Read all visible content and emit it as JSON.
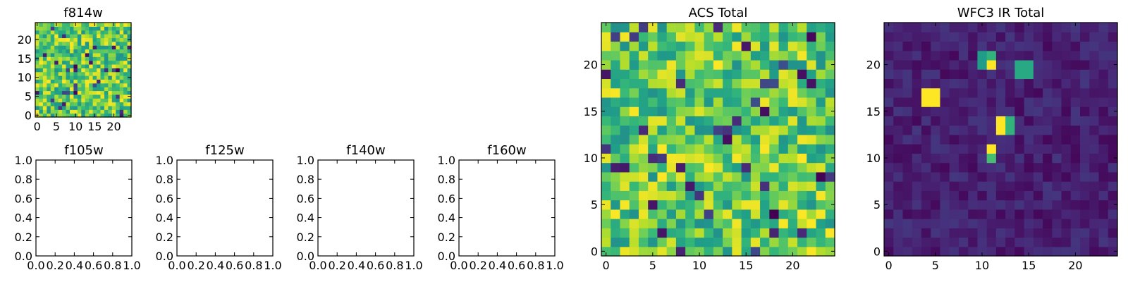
{
  "chart_data": [
    {
      "type": "heatmap",
      "title": "f814w",
      "colormap": "viridis",
      "shape": [
        25,
        25
      ],
      "origin": "lower",
      "xlim": [
        -0.5,
        24.5
      ],
      "ylim": [
        -0.5,
        24.5
      ],
      "xticks": [
        0,
        5,
        10,
        15,
        20
      ],
      "yticks": [
        0,
        5,
        10,
        15,
        20
      ],
      "value_range": [
        0,
        1
      ],
      "distribution": "mostly high values with scattered low pixels",
      "grid": false
    },
    {
      "type": "empty",
      "title": "f105w",
      "xlim": [
        0,
        1
      ],
      "ylim": [
        0,
        1
      ],
      "xticks": [
        "0.0",
        "0.2",
        "0.4",
        "0.6",
        "0.8",
        "1.0"
      ],
      "yticks": [
        "0.0",
        "0.2",
        "0.4",
        "0.6",
        "0.8",
        "1.0"
      ]
    },
    {
      "type": "empty",
      "title": "f125w",
      "xlim": [
        0,
        1
      ],
      "ylim": [
        0,
        1
      ],
      "xticks": [
        "0.0",
        "0.2",
        "0.4",
        "0.6",
        "0.8",
        "1.0"
      ],
      "yticks": [
        "0.0",
        "0.2",
        "0.4",
        "0.6",
        "0.8",
        "1.0"
      ]
    },
    {
      "type": "empty",
      "title": "f140w",
      "xlim": [
        0,
        1
      ],
      "ylim": [
        0,
        1
      ],
      "xticks": [
        "0.0",
        "0.2",
        "0.4",
        "0.6",
        "0.8",
        "1.0"
      ],
      "yticks": [
        "0.0",
        "0.2",
        "0.4",
        "0.6",
        "0.8",
        "1.0"
      ]
    },
    {
      "type": "empty",
      "title": "f160w",
      "xlim": [
        0,
        1
      ],
      "ylim": [
        0,
        1
      ],
      "xticks": [
        "0.0",
        "0.2",
        "0.4",
        "0.6",
        "0.8",
        "1.0"
      ],
      "yticks": [
        "0.0",
        "0.2",
        "0.4",
        "0.6",
        "0.8",
        "1.0"
      ]
    },
    {
      "type": "heatmap",
      "title": "ACS Total",
      "colormap": "viridis",
      "shape": [
        25,
        25
      ],
      "origin": "lower",
      "xlim": [
        -0.5,
        24.5
      ],
      "ylim": [
        -0.5,
        24.5
      ],
      "xticks": [
        0,
        5,
        10,
        15,
        20
      ],
      "yticks": [
        0,
        5,
        10,
        15,
        20
      ],
      "value_range": [
        0,
        1
      ],
      "distribution": "mostly high values with scattered low pixels",
      "grid": false
    },
    {
      "type": "heatmap",
      "title": "WFC3 IR Total",
      "colormap": "viridis",
      "shape": [
        25,
        25
      ],
      "origin": "lower",
      "xlim": [
        -0.5,
        24.5
      ],
      "ylim": [
        -0.5,
        24.5
      ],
      "xticks": [
        0,
        5,
        10,
        15,
        20
      ],
      "yticks": [
        0,
        5,
        10,
        15,
        20
      ],
      "value_range": [
        0,
        1
      ],
      "distribution": "low background with a few bright blocks",
      "hotspots": [
        {
          "x": [
            4,
            5
          ],
          "y": [
            16,
            17
          ],
          "value": 1.0
        },
        {
          "x": [
            11,
            11
          ],
          "y": [
            20,
            20
          ],
          "value": 1.0
        },
        {
          "x": [
            10,
            10
          ],
          "y": [
            20,
            21
          ],
          "value": 0.55
        },
        {
          "x": [
            11,
            11
          ],
          "y": [
            21,
            21
          ],
          "value": 0.65
        },
        {
          "x": [
            14,
            15
          ],
          "y": [
            19,
            20
          ],
          "value": 0.6
        },
        {
          "x": [
            12,
            12
          ],
          "y": [
            13,
            14
          ],
          "value": 1.0
        },
        {
          "x": [
            13,
            13
          ],
          "y": [
            13,
            14
          ],
          "value": 0.65
        },
        {
          "x": [
            11,
            11
          ],
          "y": [
            11,
            11
          ],
          "value": 1.0
        },
        {
          "x": [
            11,
            11
          ],
          "y": [
            10,
            10
          ],
          "value": 0.7
        }
      ],
      "grid": false
    }
  ]
}
